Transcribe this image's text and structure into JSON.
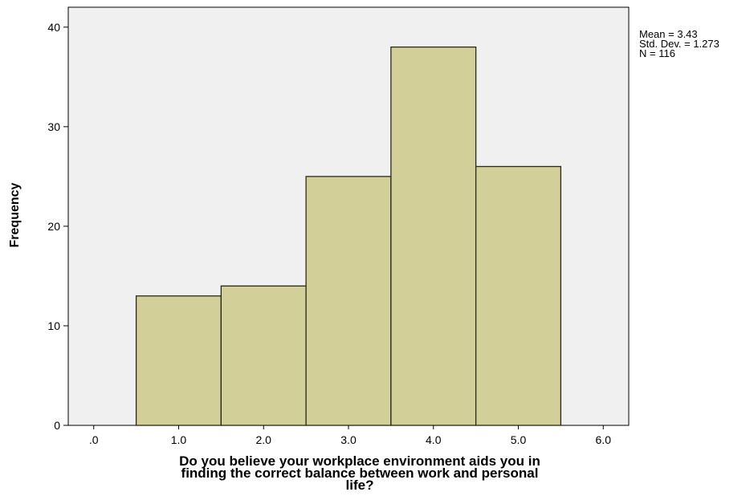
{
  "chart_data": {
    "type": "bar",
    "bins": [
      1.0,
      2.0,
      3.0,
      4.0,
      5.0
    ],
    "values": [
      13,
      14,
      25,
      38,
      26
    ],
    "xlim": [
      -0.3,
      6.3
    ],
    "ylim": [
      0,
      42
    ],
    "xticks": [
      ".0",
      "1.0",
      "2.0",
      "3.0",
      "4.0",
      "5.0",
      "6.0"
    ],
    "xtick_values": [
      0,
      1,
      2,
      3,
      4,
      5,
      6
    ],
    "yticks": [
      0,
      10,
      20,
      30,
      40
    ],
    "ylabel": "Frequency",
    "xlabel_lines": [
      "Do you believe your workplace environment aids you in",
      "finding the correct balance between work and personal",
      "life?"
    ],
    "stats": {
      "mean": "Mean = 3.43",
      "std": "Std. Dev. = 1.273",
      "n": "N = 116"
    },
    "colors": {
      "bar_fill": "#d3cf99",
      "bar_stroke": "#2a2a1a",
      "plot_bg": "#f0f0f0"
    },
    "grid": false
  }
}
